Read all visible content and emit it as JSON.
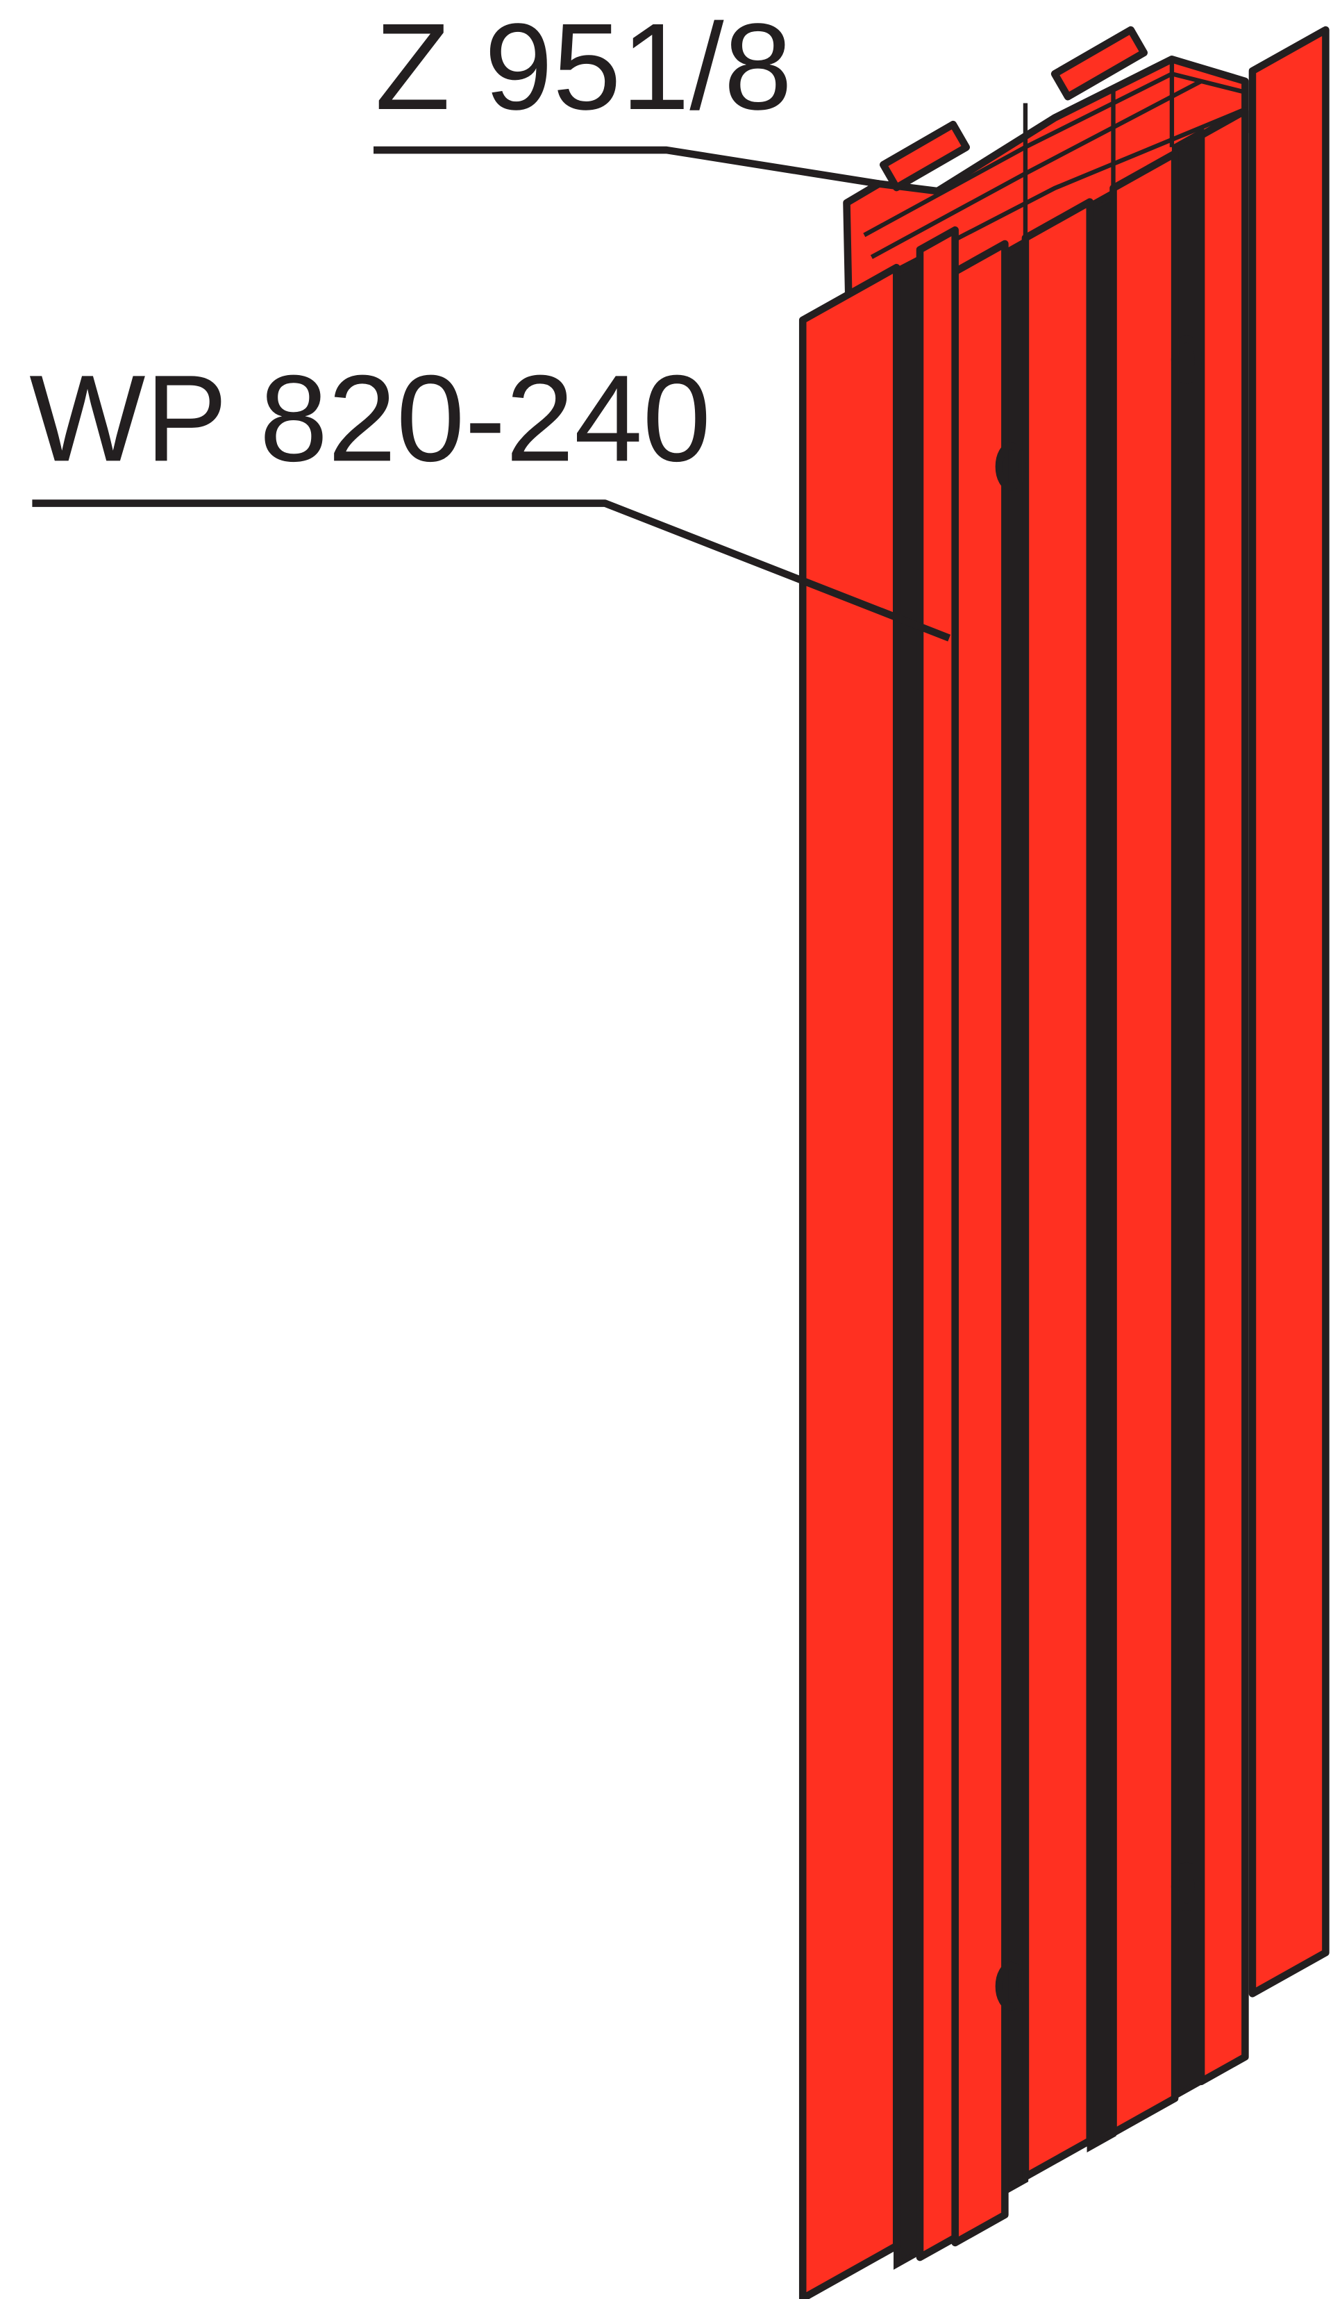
{
  "labels": {
    "top": "Z 951/8",
    "side": "WP 820-240"
  }
}
